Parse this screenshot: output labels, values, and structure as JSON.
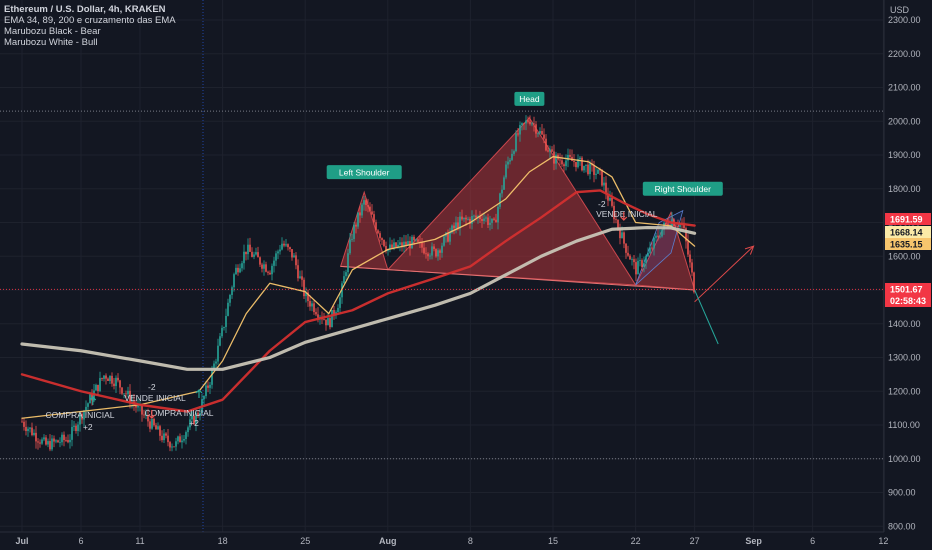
{
  "header": {
    "title": "Ethereum / U.S. Dollar, 4h, KRAKEN",
    "indicators": [
      "EMA 34, 89, 200 e cruzamento das EMA",
      "Marubozu Black - Bear",
      "Marubozu White - Bull"
    ]
  },
  "colors": {
    "background": "#131722",
    "up": "#26a69a",
    "down": "#ef5350",
    "ema34": "#f7c56d",
    "ema89": "#d32f2f",
    "ema200": "#c8c4b6",
    "pattern_fill": "#b2353a",
    "tag": "#1f9e86"
  },
  "chart_data": {
    "type": "candlestick",
    "title": "Ethereum / U.S. Dollar, 4h, KRAKEN",
    "currency_label": "USD",
    "y_axis": {
      "ticks": [
        "2300.00",
        "2200.00",
        "2100.00",
        "2000.00",
        "1900.00",
        "1800.00",
        "1700.00",
        "1600.00",
        "1500.00",
        "1400.00",
        "1300.00",
        "1200.00",
        "1100.00",
        "1000.00",
        "900.00",
        "800.00"
      ],
      "range": [
        790,
        2330
      ]
    },
    "x_axis": {
      "ticks": [
        "Jul",
        "6",
        "11",
        "18",
        "25",
        "Aug",
        "8",
        "15",
        "22",
        "27",
        "Sep",
        "6",
        "12"
      ]
    },
    "horizontal_levels": [
      2030,
      1000
    ],
    "ema_lines": [
      {
        "name": "EMA 34",
        "color": "#f7c56d",
        "points": [
          [
            "Jul 1",
            1120
          ],
          [
            "Jul 6",
            1140
          ],
          [
            "Jul 11",
            1160
          ],
          [
            "Jul 16",
            1200
          ],
          [
            "Jul 18",
            1290
          ],
          [
            "Jul 20",
            1430
          ],
          [
            "Jul 22",
            1520
          ],
          [
            "Jul 25",
            1495
          ],
          [
            "Jul 27",
            1430
          ],
          [
            "Jul 29",
            1560
          ],
          [
            "Aug 1",
            1620
          ],
          [
            "Aug 5",
            1650
          ],
          [
            "Aug 8",
            1700
          ],
          [
            "Aug 11",
            1770
          ],
          [
            "Aug 13",
            1850
          ],
          [
            "Aug 15",
            1895
          ],
          [
            "Aug 18",
            1880
          ],
          [
            "Aug 20",
            1835
          ],
          [
            "Aug 22",
            1700
          ],
          [
            "Aug 25",
            1690
          ],
          [
            "Aug 27",
            1630
          ]
        ]
      },
      {
        "name": "EMA 89",
        "color": "#d32f2f",
        "points": [
          [
            "Jul 1",
            1250
          ],
          [
            "Jul 6",
            1200
          ],
          [
            "Jul 11",
            1160
          ],
          [
            "Jul 15",
            1140
          ],
          [
            "Jul 18",
            1175
          ],
          [
            "Jul 22",
            1320
          ],
          [
            "Jul 25",
            1405
          ],
          [
            "Jul 29",
            1440
          ],
          [
            "Aug 1",
            1490
          ],
          [
            "Aug 5",
            1535
          ],
          [
            "Aug 8",
            1570
          ],
          [
            "Aug 11",
            1645
          ],
          [
            "Aug 14",
            1715
          ],
          [
            "Aug 17",
            1790
          ],
          [
            "Aug 19",
            1795
          ],
          [
            "Aug 21",
            1758
          ],
          [
            "Aug 23",
            1725
          ],
          [
            "Aug 25",
            1700
          ],
          [
            "Aug 27",
            1691
          ]
        ]
      },
      {
        "name": "EMA 200",
        "color": "#c8c4b6",
        "points": [
          [
            "Jul 1",
            1340
          ],
          [
            "Jul 6",
            1320
          ],
          [
            "Jul 11",
            1290
          ],
          [
            "Jul 15",
            1265
          ],
          [
            "Jul 18",
            1265
          ],
          [
            "Jul 22",
            1300
          ],
          [
            "Jul 25",
            1345
          ],
          [
            "Jul 28",
            1375
          ],
          [
            "Aug 1",
            1415
          ],
          [
            "Aug 5",
            1455
          ],
          [
            "Aug 8",
            1490
          ],
          [
            "Aug 11",
            1545
          ],
          [
            "Aug 14",
            1600
          ],
          [
            "Aug 17",
            1645
          ],
          [
            "Aug 20",
            1680
          ],
          [
            "Aug 23",
            1685
          ],
          [
            "Aug 25",
            1684
          ],
          [
            "Aug 27",
            1668
          ]
        ]
      }
    ],
    "pattern": {
      "name": "Head and Shoulders",
      "labels": [
        "Left Shoulder",
        "Head",
        "Right Shoulder"
      ],
      "neckline": [
        [
          "Jul 28",
          1570
        ],
        [
          "Aug 27",
          1500
        ]
      ],
      "left_shoulder": [
        [
          "Jul 28",
          1570
        ],
        [
          "Jul 30",
          1790
        ],
        [
          "Aug 1",
          1560
        ]
      ],
      "head": [
        [
          "Aug 1",
          1560
        ],
        [
          "Aug 13",
          2010
        ],
        [
          "Aug 22",
          1515
        ]
      ],
      "right_shoulder": [
        [
          "Aug 22",
          1515
        ],
        [
          "Aug 25",
          1730
        ],
        [
          "Aug 27",
          1500
        ]
      ]
    },
    "annotations": [
      {
        "text": "COMPRA INICIAL",
        "near": "Jul 6"
      },
      {
        "text": "+2",
        "near": "Jul 7"
      },
      {
        "text": "VENDE INICIAL",
        "near": "Jul 11"
      },
      {
        "text": "-2",
        "near": "Jul 12"
      },
      {
        "text": "COMPRA INICIAL",
        "near": "Jul 16"
      },
      {
        "text": "+2",
        "near": "Jul 16"
      },
      {
        "text": "VENDE INICIAL",
        "near": "Aug 21"
      },
      {
        "text": "-2",
        "near": "Aug 21"
      }
    ],
    "projection_arrows": [
      {
        "from": [
          "Aug 27",
          1465
        ],
        "to": [
          "Sep 1",
          1630
        ]
      },
      {
        "from": [
          "Aug 27",
          1500
        ],
        "to": [
          "Aug 29",
          1340
        ]
      }
    ],
    "price_labels": [
      {
        "value": "1691.59",
        "color": "#f23645",
        "text_color": "#ffffff"
      },
      {
        "value": "1668.14",
        "color": "#fbeaa7",
        "text_color": "#131722"
      },
      {
        "value": "1635.15",
        "color": "#f7c56d",
        "text_color": "#131722"
      },
      {
        "value": "1501.67",
        "color": "#f23645",
        "text_color": "#ffffff",
        "sub": "02:58:43"
      }
    ],
    "last_price": 1501.67,
    "grid": true
  }
}
